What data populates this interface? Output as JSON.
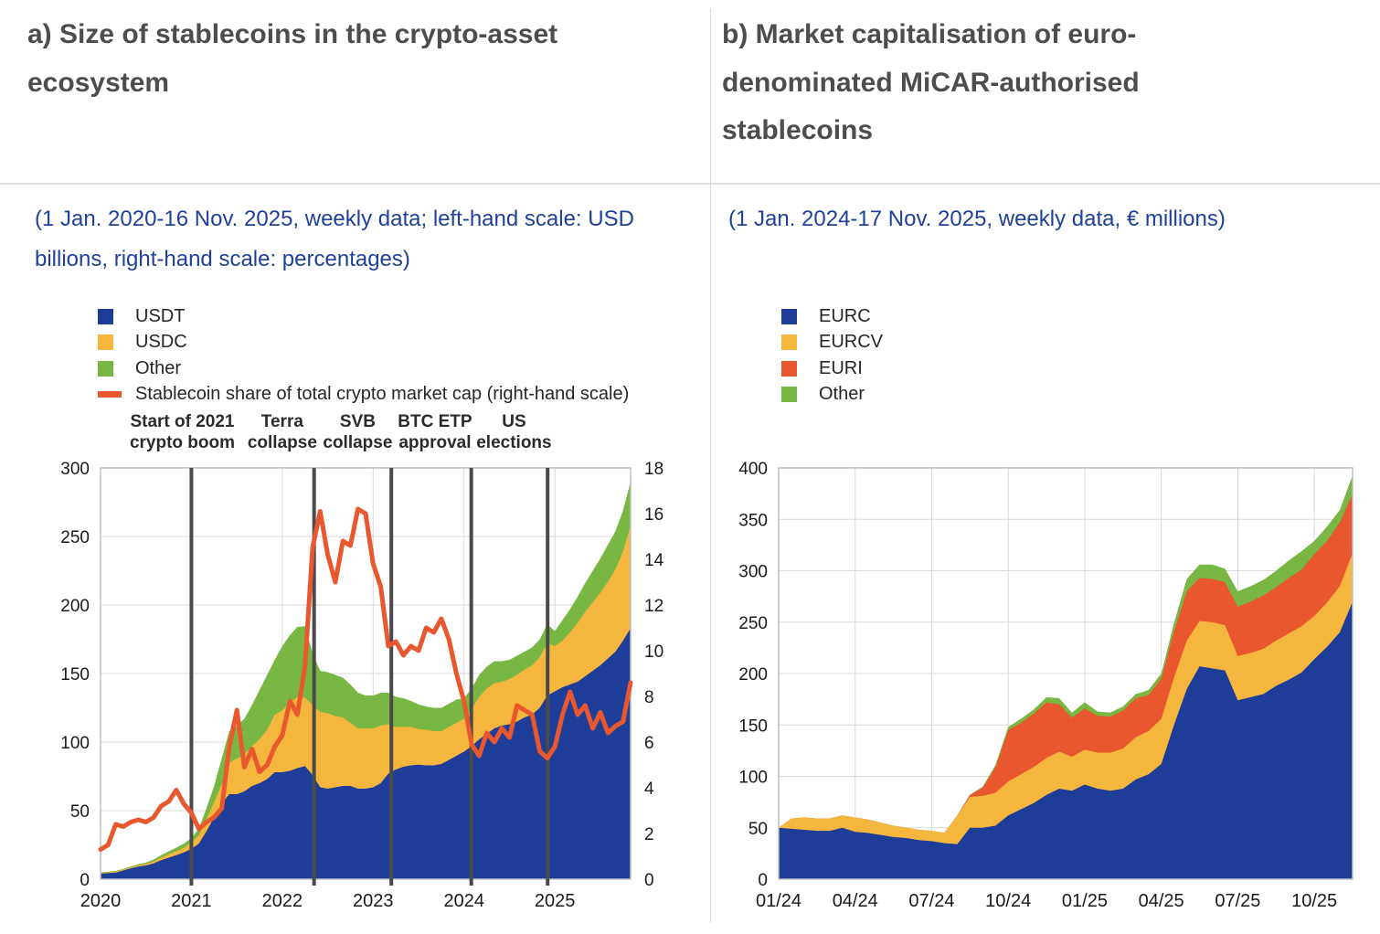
{
  "panels": {
    "a": {
      "title": "a) Size of stablecoins in the crypto-asset ecosystem",
      "subtitle": "(1 Jan. 2020-16 Nov. 2025, weekly data; left-hand scale: USD billions, right-hand scale: percentages)"
    },
    "b": {
      "title": "b) Market capitalisation of euro-denominated MiCAR-authorised stablecoins",
      "subtitle": "(1 Jan. 2024-17 Nov. 2025, weekly data, € millions)"
    }
  },
  "colors": {
    "blue": "#1e3d99",
    "yellow": "#f5b63d",
    "green": "#79b744",
    "orange": "#e8572e",
    "title_gray": "#4d4d4d",
    "subtitle_blue": "#1f419b",
    "grid": "#d9d9d9",
    "border": "#bfbfbf",
    "event_line": "#4a4a4a",
    "axis_text": "#1a1a1a"
  },
  "chart_data": [
    {
      "type": "area",
      "title": "a) Size of stablecoins in the crypto-asset ecosystem",
      "x_unit": "years",
      "x_start": 2020.0,
      "x_step": 0.083333,
      "x_range": [
        2020.0,
        2025.833
      ],
      "x_ticks": [
        {
          "pos": 2020,
          "label": "2020"
        },
        {
          "pos": 2021,
          "label": "2021"
        },
        {
          "pos": 2022,
          "label": "2022"
        },
        {
          "pos": 2023,
          "label": "2023"
        },
        {
          "pos": 2024,
          "label": "2024"
        },
        {
          "pos": 2025,
          "label": "2025"
        }
      ],
      "y_left": {
        "label": "USD billions",
        "max": 300,
        "ticks": [
          0,
          50,
          100,
          150,
          200,
          250,
          300
        ]
      },
      "y_right": {
        "label": "percentages",
        "max": 18,
        "ticks": [
          0,
          2,
          4,
          6,
          8,
          10,
          12,
          14,
          16,
          18
        ]
      },
      "series": [
        {
          "name": "USDT",
          "color": "#1e3d99",
          "values": [
            4,
            4.4,
            4.8,
            6.3,
            7.9,
            9.2,
            10,
            11.5,
            13.8,
            15.7,
            17.5,
            19.5,
            22,
            26,
            35,
            45,
            55,
            62,
            62,
            64,
            68,
            70,
            73,
            78,
            78,
            79,
            81,
            82.5,
            76,
            67,
            66,
            67,
            68,
            68,
            66,
            66,
            67,
            70,
            77,
            80,
            82,
            83,
            83.5,
            83,
            83,
            84,
            87,
            90,
            93,
            97,
            102,
            106,
            110,
            112,
            113,
            115,
            118,
            120,
            125,
            134,
            137,
            140,
            142,
            144,
            148,
            152,
            156,
            161,
            166,
            174,
            183
          ]
        },
        {
          "name": "USDC",
          "color": "#f5b63d",
          "values": [
            0.5,
            0.6,
            0.7,
            0.7,
            0.8,
            0.9,
            1.1,
            1.4,
            1.9,
            2.4,
            2.9,
            3.4,
            4.5,
            6,
            9,
            11,
            14,
            23,
            26,
            27,
            29,
            32,
            36,
            42,
            45,
            50,
            52,
            50,
            51,
            55,
            55,
            52,
            50,
            46,
            44,
            44,
            43,
            42,
            36,
            31,
            29,
            28,
            26,
            26,
            25,
            24,
            24,
            24,
            24,
            27,
            31,
            33,
            33,
            32,
            33,
            34,
            35,
            36,
            37,
            38,
            33,
            34,
            38,
            43,
            47,
            50,
            53,
            56,
            60,
            65,
            75
          ]
        },
        {
          "name": "Other",
          "color": "#79b744",
          "values": [
            0.4,
            0.4,
            0.5,
            0.5,
            0.6,
            0.8,
            1,
            1.4,
            1.8,
            2.2,
            2.6,
            3,
            3.5,
            5,
            8,
            12,
            19,
            23,
            24,
            26,
            30,
            36,
            40,
            40,
            47,
            49,
            51,
            52,
            38,
            30,
            30,
            30,
            29,
            28,
            26,
            24,
            24,
            24,
            23,
            22,
            21,
            19,
            18,
            17,
            17,
            17,
            17,
            17,
            15,
            15,
            16,
            16,
            16,
            15,
            14,
            14,
            13,
            13,
            13,
            14,
            11,
            15,
            17,
            19,
            21,
            23,
            25,
            27,
            28,
            30,
            32
          ]
        }
      ],
      "line_series": {
        "name": "Stablecoin share of total crypto market cap (right-hand scale)",
        "color": "#e8572e",
        "axis": "right",
        "values": [
          1.3,
          1.5,
          2.4,
          2.3,
          2.5,
          2.6,
          2.5,
          2.7,
          3.2,
          3.4,
          3.9,
          3.3,
          2.9,
          2.2,
          2.5,
          2.7,
          3.1,
          5.8,
          7.4,
          4.9,
          5.7,
          4.7,
          5,
          5.8,
          6.3,
          7.8,
          7.2,
          9.3,
          14.5,
          16.1,
          14.2,
          13,
          14.8,
          14.6,
          16.2,
          16,
          13.8,
          12.8,
          10.2,
          10.4,
          9.8,
          10.2,
          10,
          11,
          10.8,
          11.4,
          10.5,
          9,
          7.8,
          5.9,
          5.4,
          6.4,
          6,
          6.6,
          6.2,
          7.6,
          7.4,
          7.2,
          5.6,
          5.3,
          5.8,
          7.2,
          8.2,
          7.2,
          7.6,
          6.6,
          7.3,
          6.4,
          6.7,
          6.9,
          8.6
        ]
      },
      "annotations": [
        {
          "lines": [
            "Start of 2021",
            "crypto boom"
          ],
          "label_x": 2020.9,
          "line_x": 2021.0
        },
        {
          "lines": [
            "Terra",
            "collapse"
          ],
          "label_x": 2022.0,
          "line_x": 2022.35
        },
        {
          "lines": [
            "SVB",
            "collapse"
          ],
          "label_x": 2022.83,
          "line_x": 2023.2
        },
        {
          "lines": [
            "BTC ETP",
            "approval"
          ],
          "label_x": 2023.68,
          "line_x": 2024.08
        },
        {
          "lines": [
            "US",
            "elections"
          ],
          "label_x": 2024.55,
          "line_x": 2024.92
        }
      ]
    },
    {
      "type": "area",
      "title": "b) Market capitalisation of euro-denominated MiCAR-authorised stablecoins",
      "x_unit": "months since Jan 2024",
      "x_start": 0,
      "x_step": 0.5,
      "x_range": [
        0,
        22.5
      ],
      "x_ticks": [
        {
          "pos": 0,
          "label": "01/24"
        },
        {
          "pos": 3,
          "label": "04/24"
        },
        {
          "pos": 6,
          "label": "07/24"
        },
        {
          "pos": 9,
          "label": "10/24"
        },
        {
          "pos": 12,
          "label": "01/25"
        },
        {
          "pos": 15,
          "label": "04/25"
        },
        {
          "pos": 18,
          "label": "07/25"
        },
        {
          "pos": 21,
          "label": "10/25"
        }
      ],
      "y_left": {
        "label": "€ millions",
        "max": 400,
        "ticks": [
          0,
          50,
          100,
          150,
          200,
          250,
          300,
          350,
          400
        ]
      },
      "series": [
        {
          "name": "EURC",
          "color": "#1e3d99",
          "values": [
            50,
            49,
            48,
            47,
            47,
            50,
            46,
            45,
            43,
            41,
            40,
            38,
            37,
            35,
            34,
            50,
            50,
            52,
            62,
            68,
            74,
            82,
            88,
            86,
            92,
            88,
            86,
            88,
            97,
            102,
            112,
            150,
            185,
            207,
            205,
            203,
            174,
            177,
            180,
            188,
            194,
            201,
            214,
            226,
            240,
            270
          ]
        },
        {
          "name": "EURCV",
          "color": "#f5b63d",
          "values": [
            0,
            10,
            12,
            12,
            12,
            12,
            14,
            13,
            12,
            11,
            10,
            10,
            10,
            10,
            28,
            30,
            31,
            32,
            33,
            34,
            35,
            36,
            36,
            33,
            34,
            35,
            37,
            39,
            41,
            42,
            44,
            46,
            47,
            44,
            45,
            44,
            43,
            43,
            44,
            44,
            45,
            45,
            42,
            43,
            45,
            47
          ]
        },
        {
          "name": "EURI",
          "color": "#e8572e",
          "values": [
            0,
            0,
            0,
            0,
            0,
            0,
            0,
            0,
            0,
            0,
            0,
            0,
            0,
            0,
            0,
            2,
            8,
            25,
            50,
            50,
            52,
            54,
            46,
            38,
            40,
            36,
            35,
            37,
            38,
            35,
            39,
            45,
            48,
            42,
            42,
            42,
            48,
            50,
            52,
            52,
            54,
            55,
            60,
            60,
            62,
            58
          ]
        },
        {
          "name": "Other",
          "color": "#79b744",
          "values": [
            0,
            0,
            0,
            0,
            0,
            0,
            0,
            0,
            0,
            0,
            0,
            0,
            0,
            0,
            0,
            0,
            1,
            2,
            3,
            4,
            4,
            5,
            6,
            5,
            6,
            4,
            4,
            4,
            4,
            5,
            5,
            8,
            12,
            13,
            14,
            13,
            15,
            15,
            15,
            16,
            17,
            18,
            13,
            14,
            12,
            18
          ]
        }
      ]
    }
  ]
}
